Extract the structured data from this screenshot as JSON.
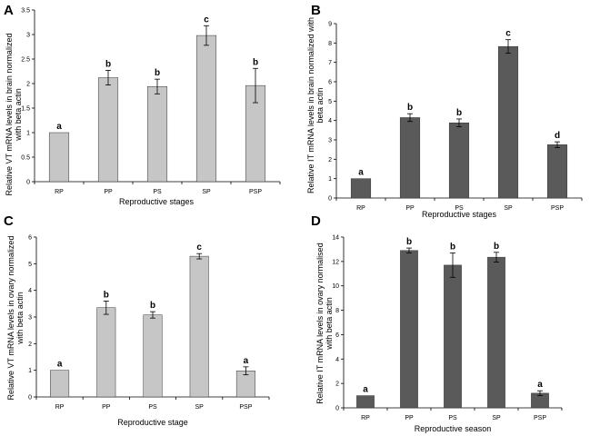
{
  "chart_data": [
    {
      "panel_label": "A",
      "type": "bar",
      "categories": [
        "RP",
        "PP",
        "PS",
        "SP",
        "PSP"
      ],
      "values": [
        1.0,
        2.12,
        1.94,
        2.98,
        1.96
      ],
      "errors": [
        0.0,
        0.15,
        0.15,
        0.2,
        0.35
      ],
      "letters": [
        "a",
        "b",
        "b",
        "c",
        "b"
      ],
      "ylim": [
        0,
        3.5
      ],
      "yticks": [
        "0",
        "0.5",
        "1",
        "1.5",
        "2",
        "2.5",
        "3",
        "3.5"
      ],
      "ylabel_lines": [
        "Relative VT mRNA levels in brain normalized",
        "with beta actin"
      ],
      "xlabel": "Reproductive stages",
      "bar_color": "#c6c6c6"
    },
    {
      "panel_label": "B",
      "type": "bar",
      "categories": [
        "RP",
        "PP",
        "PS",
        "SP",
        "PSP"
      ],
      "values": [
        1.0,
        4.15,
        3.88,
        7.82,
        2.75
      ],
      "errors": [
        0.0,
        0.2,
        0.2,
        0.35,
        0.15
      ],
      "letters": [
        "a",
        "b",
        "b",
        "c",
        "d"
      ],
      "ylim": [
        0,
        9
      ],
      "yticks": [
        "0",
        "1",
        "2",
        "3",
        "4",
        "5",
        "6",
        "7",
        "8",
        "9"
      ],
      "ylabel_lines": [
        "Relative IT mRNA levels in brain normalized with",
        "beta actin"
      ],
      "xlabel": "Reproductive stages",
      "bar_color": "#5a5a5a"
    },
    {
      "panel_label": "C",
      "type": "bar",
      "categories": [
        "RP",
        "PP",
        "PS",
        "SP",
        "PSP"
      ],
      "values": [
        1.0,
        3.35,
        3.08,
        5.28,
        0.98
      ],
      "errors": [
        0.0,
        0.25,
        0.12,
        0.1,
        0.15
      ],
      "letters": [
        "a",
        "b",
        "b",
        "c",
        "a"
      ],
      "ylim": [
        0,
        6
      ],
      "yticks": [
        "0",
        "1",
        "2",
        "3",
        "4",
        "5",
        "6"
      ],
      "ylabel_lines": [
        "Relative VT mRNA levels in ovary normalized",
        "with beta actin"
      ],
      "xlabel": "Reproductive stage",
      "bar_color": "#c6c6c6"
    },
    {
      "panel_label": "D",
      "type": "bar",
      "categories": [
        "RP",
        "PP",
        "PS",
        "SP",
        "PSP"
      ],
      "values": [
        1.0,
        12.9,
        11.7,
        12.35,
        1.2
      ],
      "errors": [
        0.0,
        0.2,
        1.0,
        0.4,
        0.2
      ],
      "letters": [
        "a",
        "b",
        "b",
        "b",
        "a"
      ],
      "ylim": [
        0,
        14
      ],
      "yticks": [
        "0",
        "2",
        "4",
        "6",
        "8",
        "10",
        "12",
        "14"
      ],
      "ylabel_lines": [
        "Relative IT mRNA levels in ovary normalised",
        "with beta actin"
      ],
      "xlabel": "Reproductive season",
      "bar_color": "#5a5a5a"
    }
  ]
}
